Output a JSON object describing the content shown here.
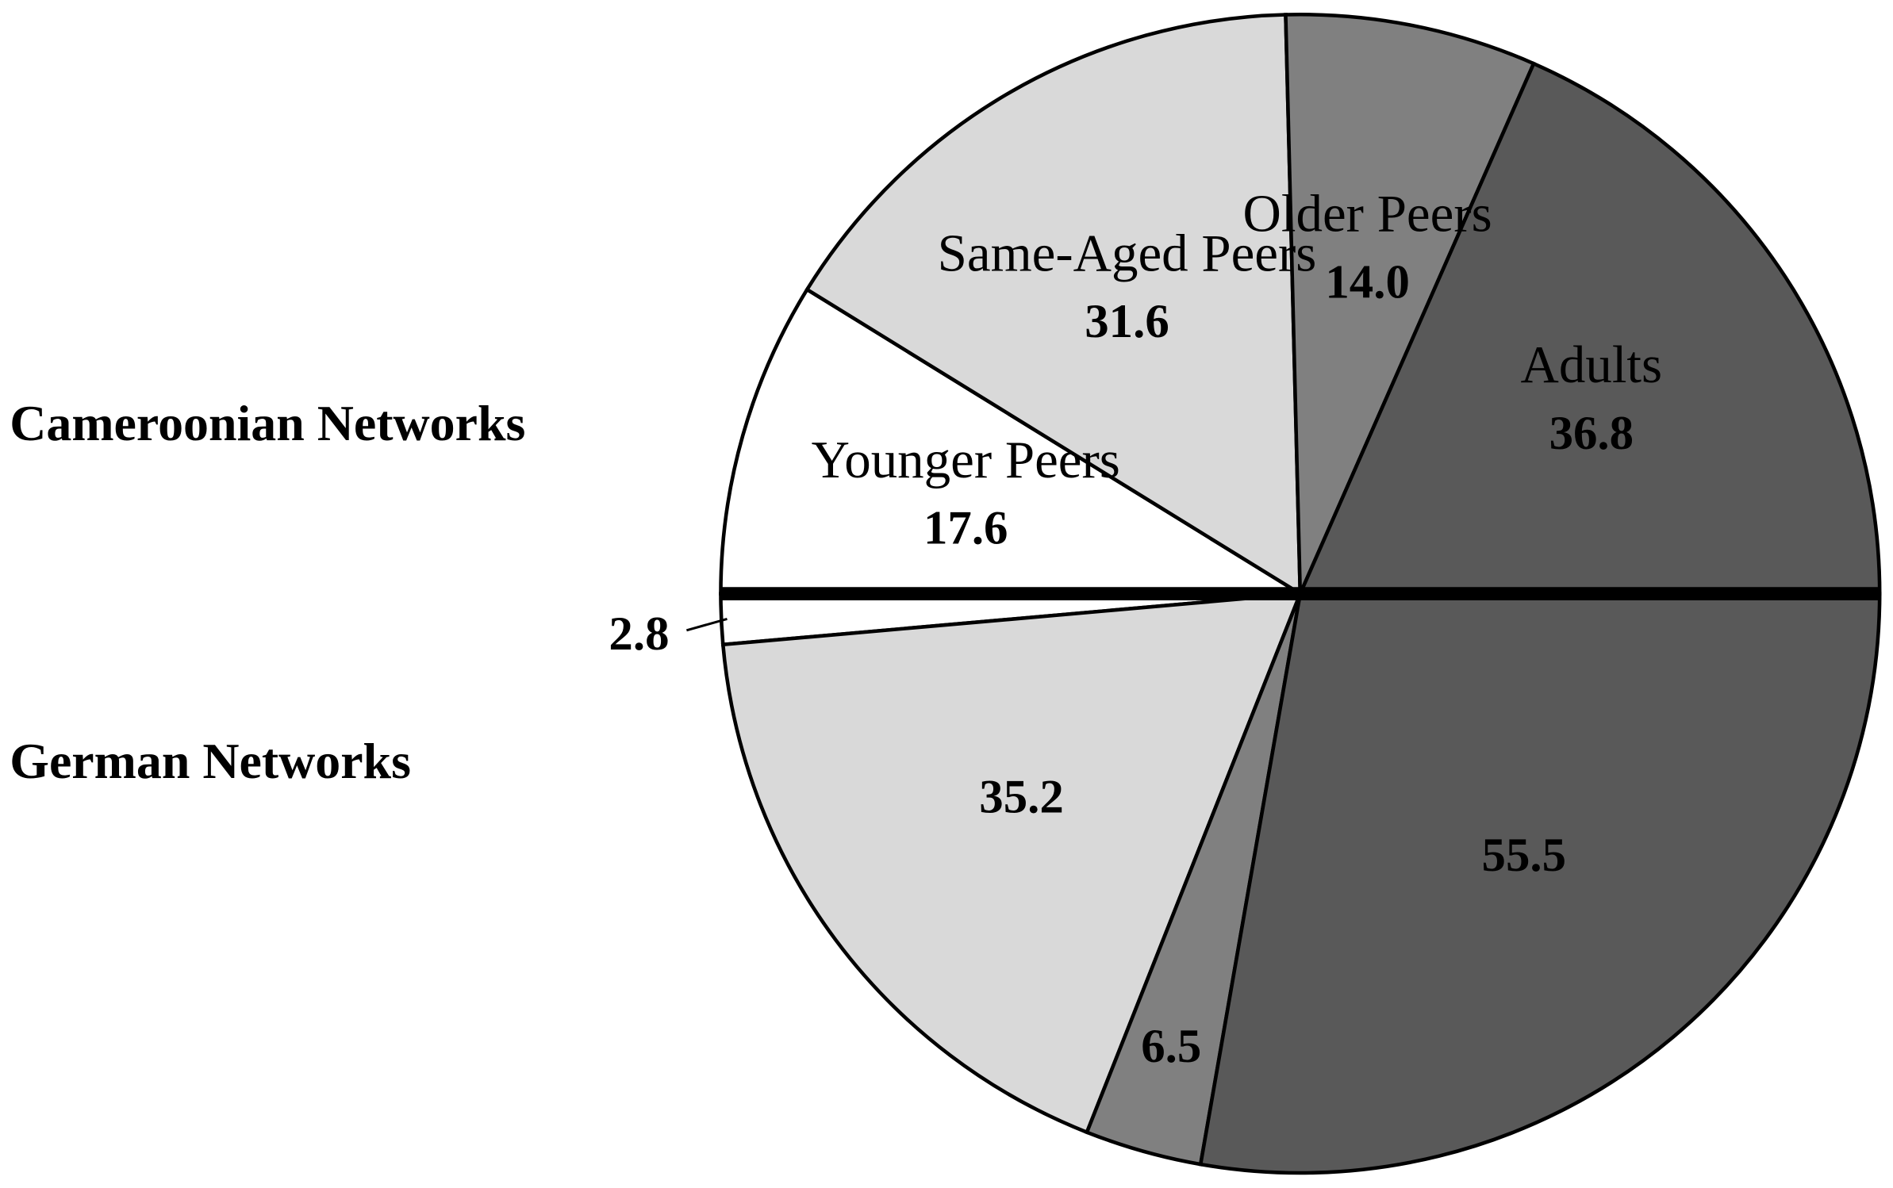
{
  "chart_data": [
    {
      "type": "pie",
      "half": "upper",
      "title": "Cameroonian Networks",
      "categories": [
        "Younger Peers",
        "Same-Aged Peers",
        "Older Peers",
        "Adults"
      ],
      "values": [
        17.6,
        31.6,
        14.0,
        36.8
      ],
      "value_labels": [
        "17.6",
        "31.6",
        "14.0",
        "36.8"
      ],
      "colors": [
        "#ffffff",
        "#d9d9d9",
        "#808080",
        "#595959"
      ]
    },
    {
      "type": "pie",
      "half": "lower",
      "title": "German Networks",
      "categories": [
        null,
        null,
        null,
        null
      ],
      "values": [
        2.8,
        35.2,
        6.5,
        55.5
      ],
      "value_labels": [
        "2.8",
        "35.2",
        "6.5",
        "55.5"
      ],
      "colors": [
        "#ffffff",
        "#d9d9d9",
        "#808080",
        "#595959"
      ]
    }
  ]
}
